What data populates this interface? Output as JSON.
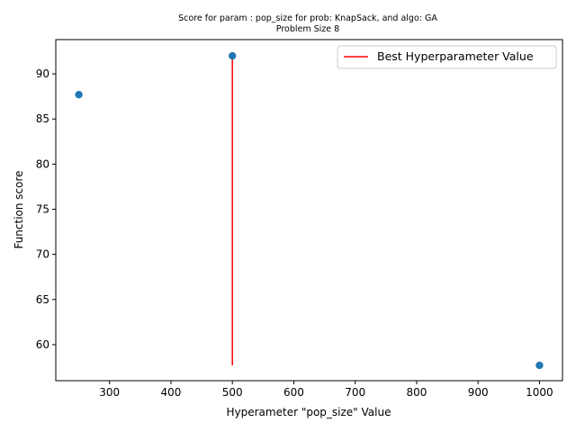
{
  "chart_data": {
    "type": "scatter",
    "title": "Score for param : pop_size for prob: KnapSack, and algo: GA",
    "subtitle": "Problem Size 8",
    "xlabel": "Hyperameter \"pop_size\" Value",
    "ylabel": "Function score",
    "xlim": [
      212.5,
      1037.5
    ],
    "ylim": [
      56.0,
      93.8
    ],
    "xticks": [
      300,
      400,
      500,
      600,
      700,
      800,
      900,
      1000
    ],
    "yticks": [
      60,
      65,
      70,
      75,
      80,
      85,
      90
    ],
    "x": [
      250,
      500,
      1000
    ],
    "y": [
      87.7,
      92.0,
      57.7
    ],
    "point_color": "#1f77b4",
    "best_line": {
      "label": "Best Hyperparameter Value",
      "x": 500,
      "y_range": [
        57.7,
        92.0
      ],
      "color": "#ff0000"
    },
    "legend_position": "top-right",
    "grid": false
  }
}
